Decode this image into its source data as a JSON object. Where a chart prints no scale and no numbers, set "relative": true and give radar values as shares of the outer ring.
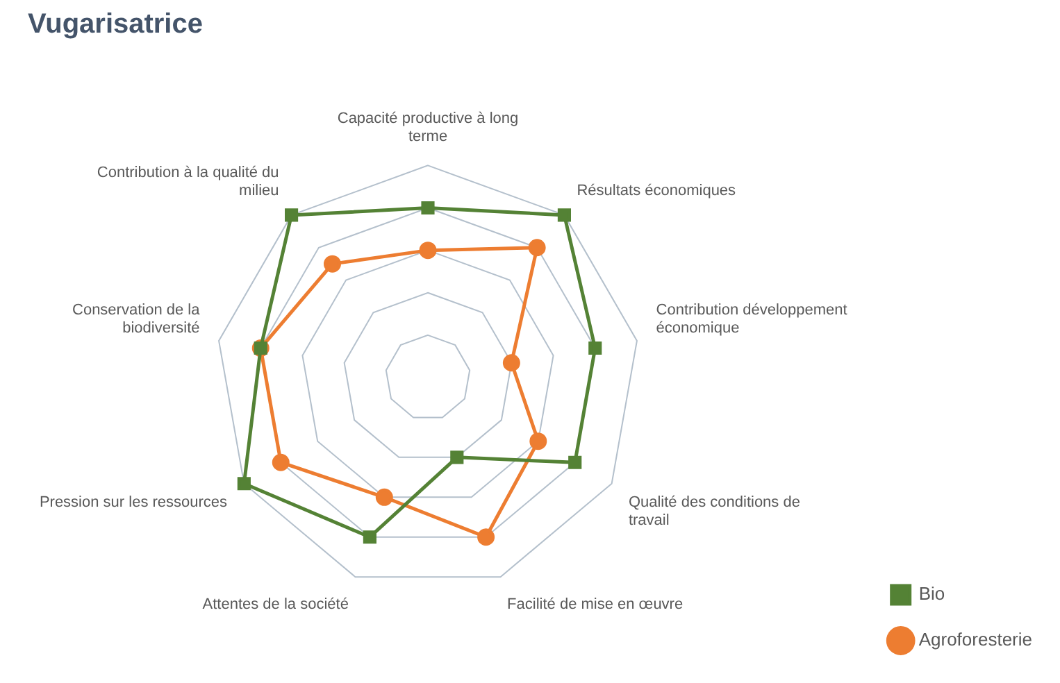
{
  "chart_data": {
    "type": "radar",
    "title": "Vugarisatrice",
    "relative": true,
    "categories": [
      "Capacité productive à long terme",
      "Résultats économiques",
      "Contribution développement économique",
      "Qualité des conditions de travail",
      "Facilité de mise en œuvre",
      "Attentes de la société",
      "Pression sur les ressources",
      "Conservation de la biodiversité",
      "Contribution à la qualité du milieu"
    ],
    "series": [
      {
        "name": "Bio",
        "color": "#548235",
        "marker": "square",
        "values": [
          0.8,
          1,
          0.8,
          0.8,
          0.4,
          0.8,
          1,
          0.8,
          1
        ]
      },
      {
        "name": "Agroforesterie",
        "color": "#ed7d31",
        "marker": "circle",
        "values": [
          0.6,
          0.8,
          0.4,
          0.6,
          0.8,
          0.6,
          0.8,
          0.8,
          0.7
        ]
      }
    ],
    "grid": true,
    "legend": "bottom right"
  }
}
